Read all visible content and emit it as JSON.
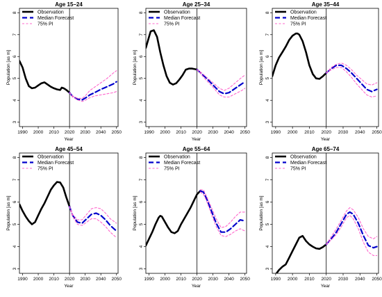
{
  "legend": {
    "observation": "Observation",
    "median": "Median Forecast",
    "pi": "75% PI"
  },
  "axes": {
    "xlabel": "Year",
    "ylabel": "Population [as m]"
  },
  "colors": {
    "observation": "#000000",
    "median": "#0000cc",
    "pi": "#ff66cc",
    "vline": "#000000"
  },
  "chart_data": [
    {
      "type": "line",
      "title": "Age 15–24",
      "xlim": [
        1988,
        2051
      ],
      "ylim": [
        2.8,
        8.2
      ],
      "xticks": [
        1990,
        2000,
        2010,
        2020,
        2030,
        2040,
        2050
      ],
      "yticks": [
        3,
        4,
        5,
        6,
        7,
        8
      ],
      "forecast_start": 2020,
      "legend_position": "top-left",
      "series": [
        {
          "name": "Observation",
          "style": "solid",
          "x": [
            1988,
            1990,
            1992,
            1994,
            1996,
            1998,
            2000,
            2002,
            2004,
            2006,
            2008,
            2010,
            2012,
            2014,
            2015,
            2016,
            2017,
            2018,
            2020
          ],
          "y": [
            5.8,
            5.5,
            5.0,
            4.65,
            4.55,
            4.58,
            4.68,
            4.78,
            4.82,
            4.72,
            4.62,
            4.55,
            4.5,
            4.47,
            4.58,
            4.56,
            4.52,
            4.47,
            4.35
          ]
        },
        {
          "name": "Median Forecast",
          "style": "dashed",
          "x": [
            2020,
            2022,
            2025,
            2028,
            2030,
            2033,
            2036,
            2040,
            2044,
            2048,
            2050
          ],
          "y": [
            4.35,
            4.18,
            4.05,
            4.02,
            4.1,
            4.25,
            4.35,
            4.5,
            4.62,
            4.75,
            4.85
          ]
        },
        {
          "name": "75% PI upper",
          "style": "dotted",
          "x": [
            2020,
            2022,
            2025,
            2028,
            2030,
            2033,
            2036,
            2040,
            2044,
            2048,
            2050
          ],
          "y": [
            4.35,
            4.2,
            4.1,
            4.08,
            4.2,
            4.45,
            4.6,
            4.8,
            5.0,
            5.25,
            5.35
          ]
        },
        {
          "name": "75% PI lower",
          "style": "dotted",
          "x": [
            2020,
            2022,
            2025,
            2028,
            2030,
            2033,
            2036,
            2040,
            2044,
            2048,
            2050
          ],
          "y": [
            4.35,
            4.15,
            4.02,
            3.95,
            4.0,
            4.12,
            4.2,
            4.25,
            4.3,
            4.35,
            4.4
          ]
        }
      ]
    },
    {
      "type": "line",
      "title": "Age 25–34",
      "xlim": [
        1988,
        2051
      ],
      "ylim": [
        2.8,
        8.2
      ],
      "xticks": [
        1990,
        2000,
        2010,
        2020,
        2030,
        2040,
        2050
      ],
      "yticks": [
        3,
        4,
        5,
        6,
        7,
        8
      ],
      "forecast_start": 2020,
      "legend_position": "top-left",
      "series": [
        {
          "name": "Observation",
          "style": "solid",
          "x": [
            1988,
            1990,
            1991,
            1993,
            1995,
            1997,
            1999,
            2001,
            2003,
            2005,
            2007,
            2009,
            2011,
            2013,
            2015,
            2017,
            2019,
            2020
          ],
          "y": [
            6.4,
            6.9,
            7.15,
            7.2,
            6.9,
            6.2,
            5.6,
            5.1,
            4.8,
            4.72,
            4.78,
            4.95,
            5.15,
            5.4,
            5.45,
            5.45,
            5.42,
            5.4
          ]
        },
        {
          "name": "Median Forecast",
          "style": "dashed",
          "x": [
            2020,
            2023,
            2026,
            2030,
            2034,
            2037,
            2040,
            2044,
            2048,
            2050
          ],
          "y": [
            5.4,
            5.2,
            5.0,
            4.7,
            4.4,
            4.3,
            4.35,
            4.55,
            4.75,
            4.85
          ]
        },
        {
          "name": "75% PI upper",
          "style": "dotted",
          "x": [
            2020,
            2023,
            2026,
            2030,
            2034,
            2037,
            2040,
            2044,
            2048,
            2050
          ],
          "y": [
            5.4,
            5.25,
            5.05,
            4.8,
            4.55,
            4.45,
            4.55,
            4.8,
            5.05,
            5.15
          ]
        },
        {
          "name": "75% PI lower",
          "style": "dotted",
          "x": [
            2020,
            2023,
            2026,
            2030,
            2034,
            2037,
            2040,
            2044,
            2048,
            2050
          ],
          "y": [
            5.4,
            5.15,
            4.9,
            4.6,
            4.25,
            4.15,
            4.15,
            4.3,
            4.45,
            4.55
          ]
        }
      ]
    },
    {
      "type": "line",
      "title": "Age 35–44",
      "xlim": [
        1988,
        2051
      ],
      "ylim": [
        2.8,
        8.2
      ],
      "xticks": [
        1990,
        2000,
        2010,
        2020,
        2030,
        2040,
        2050
      ],
      "yticks": [
        3,
        4,
        5,
        6,
        7,
        8
      ],
      "forecast_start": 2020,
      "legend_position": "top-left",
      "series": [
        {
          "name": "Observation",
          "style": "solid",
          "x": [
            1988,
            1990,
            1992,
            1994,
            1996,
            1998,
            2000,
            2002,
            2003,
            2004,
            2006,
            2008,
            2010,
            2012,
            2014,
            2016,
            2018,
            2020
          ],
          "y": [
            5.1,
            5.6,
            5.95,
            6.2,
            6.45,
            6.75,
            6.95,
            7.05,
            7.05,
            7.0,
            6.7,
            6.2,
            5.6,
            5.2,
            5.0,
            4.98,
            5.1,
            5.25
          ]
        },
        {
          "name": "Median Forecast",
          "style": "dashed",
          "x": [
            2020,
            2023,
            2026,
            2029,
            2032,
            2035,
            2038,
            2041,
            2044,
            2047,
            2050
          ],
          "y": [
            5.25,
            5.45,
            5.6,
            5.6,
            5.45,
            5.25,
            5.0,
            4.75,
            4.5,
            4.4,
            4.5
          ]
        },
        {
          "name": "75% PI upper",
          "style": "dotted",
          "x": [
            2020,
            2023,
            2026,
            2029,
            2032,
            2035,
            2038,
            2041,
            2044,
            2047,
            2050
          ],
          "y": [
            5.25,
            5.5,
            5.65,
            5.7,
            5.6,
            5.4,
            5.15,
            4.95,
            4.75,
            4.7,
            4.8
          ]
        },
        {
          "name": "75% PI lower",
          "style": "dotted",
          "x": [
            2020,
            2023,
            2026,
            2029,
            2032,
            2035,
            2038,
            2041,
            2044,
            2047,
            2050
          ],
          "y": [
            5.25,
            5.4,
            5.5,
            5.5,
            5.3,
            5.05,
            4.75,
            4.5,
            4.25,
            4.15,
            4.2
          ]
        }
      ]
    },
    {
      "type": "line",
      "title": "Age 45–54",
      "xlim": [
        1988,
        2051
      ],
      "ylim": [
        2.8,
        8.2
      ],
      "xticks": [
        1990,
        2000,
        2010,
        2020,
        2030,
        2040,
        2050
      ],
      "yticks": [
        3,
        4,
        5,
        6,
        7,
        8
      ],
      "forecast_start": 2020,
      "legend_position": "top-left",
      "series": [
        {
          "name": "Observation",
          "style": "solid",
          "x": [
            1988,
            1990,
            1992,
            1994,
            1996,
            1998,
            2000,
            2002,
            2004,
            2006,
            2008,
            2010,
            2012,
            2014,
            2016,
            2018,
            2020
          ],
          "y": [
            5.9,
            5.6,
            5.35,
            5.15,
            5.0,
            5.1,
            5.4,
            5.7,
            5.95,
            6.25,
            6.55,
            6.75,
            6.9,
            6.88,
            6.65,
            6.2,
            5.8
          ]
        },
        {
          "name": "Median Forecast",
          "style": "dashed",
          "x": [
            2020,
            2022,
            2025,
            2028,
            2031,
            2034,
            2037,
            2040,
            2043,
            2046,
            2050
          ],
          "y": [
            5.8,
            5.4,
            5.1,
            5.05,
            5.25,
            5.45,
            5.5,
            5.4,
            5.2,
            4.95,
            4.7
          ]
        },
        {
          "name": "75% PI upper",
          "style": "dotted",
          "x": [
            2020,
            2022,
            2025,
            2028,
            2031,
            2034,
            2037,
            2040,
            2043,
            2046,
            2050
          ],
          "y": [
            5.8,
            5.45,
            5.2,
            5.2,
            5.45,
            5.7,
            5.75,
            5.7,
            5.5,
            5.25,
            5.05
          ]
        },
        {
          "name": "75% PI lower",
          "style": "dotted",
          "x": [
            2020,
            2022,
            2025,
            2028,
            2031,
            2034,
            2037,
            2040,
            2043,
            2046,
            2050
          ],
          "y": [
            5.8,
            5.35,
            5.0,
            4.95,
            5.1,
            5.25,
            5.25,
            5.1,
            4.9,
            4.65,
            4.4
          ]
        }
      ]
    },
    {
      "type": "line",
      "title": "Age 55–64",
      "xlim": [
        1988,
        2051
      ],
      "ylim": [
        2.8,
        8.2
      ],
      "xticks": [
        1990,
        2000,
        2010,
        2020,
        2030,
        2040,
        2050
      ],
      "yticks": [
        3,
        4,
        5,
        6,
        7,
        8
      ],
      "forecast_start": 2020,
      "legend_position": "top-left",
      "series": [
        {
          "name": "Observation",
          "style": "solid",
          "x": [
            1988,
            1990,
            1992,
            1994,
            1996,
            1997,
            1998,
            2000,
            2002,
            2004,
            2006,
            2008,
            2010,
            2012,
            2014,
            2016,
            2018,
            2020,
            2022
          ],
          "y": [
            4.05,
            4.35,
            4.65,
            5.0,
            5.3,
            5.38,
            5.35,
            5.1,
            4.85,
            4.65,
            4.6,
            4.7,
            5.0,
            5.25,
            5.5,
            5.75,
            6.05,
            6.35,
            6.5
          ]
        },
        {
          "name": "Median Forecast",
          "style": "dashed",
          "x": [
            2022,
            2024,
            2026,
            2029,
            2032,
            2035,
            2038,
            2041,
            2044,
            2047,
            2050
          ],
          "y": [
            6.5,
            6.45,
            6.15,
            5.6,
            5.05,
            4.65,
            4.65,
            4.8,
            5.0,
            5.2,
            5.15
          ]
        },
        {
          "name": "75% PI upper",
          "style": "dotted",
          "x": [
            2022,
            2024,
            2026,
            2029,
            2032,
            2035,
            2038,
            2041,
            2044,
            2047,
            2050
          ],
          "y": [
            6.55,
            6.55,
            6.25,
            5.75,
            5.25,
            4.85,
            4.9,
            5.1,
            5.35,
            5.55,
            5.55
          ]
        },
        {
          "name": "75% PI lower",
          "style": "dotted",
          "x": [
            2022,
            2024,
            2026,
            2029,
            2032,
            2035,
            2038,
            2041,
            2044,
            2047,
            2050
          ],
          "y": [
            6.45,
            6.35,
            6.05,
            5.45,
            4.9,
            4.5,
            4.45,
            4.55,
            4.7,
            4.8,
            4.7
          ]
        }
      ]
    },
    {
      "type": "line",
      "title": "Age 65–74",
      "xlim": [
        1988,
        2051
      ],
      "ylim": [
        2.8,
        8.2
      ],
      "xticks": [
        1990,
        2000,
        2010,
        2020,
        2030,
        2040,
        2050
      ],
      "yticks": [
        3,
        4,
        5,
        6,
        7,
        8
      ],
      "forecast_start": 2020,
      "legend_position": "top-left",
      "series": [
        {
          "name": "Observation",
          "style": "solid",
          "x": [
            1990,
            1992,
            1994,
            1996,
            1998,
            2000,
            2002,
            2004,
            2006,
            2008,
            2010,
            2012,
            2014,
            2016,
            2018,
            2020
          ],
          "y": [
            2.75,
            2.95,
            3.1,
            3.2,
            3.5,
            3.8,
            4.1,
            4.4,
            4.48,
            4.25,
            4.1,
            4.0,
            3.92,
            3.9,
            3.98,
            4.1
          ]
        },
        {
          "name": "Median Forecast",
          "style": "dashed",
          "x": [
            2020,
            2023,
            2026,
            2029,
            2032,
            2034,
            2036,
            2039,
            2042,
            2045,
            2048,
            2050
          ],
          "y": [
            4.1,
            4.35,
            4.65,
            5.05,
            5.45,
            5.55,
            5.45,
            5.05,
            4.5,
            4.05,
            3.95,
            4.0
          ]
        },
        {
          "name": "75% PI upper",
          "style": "dotted",
          "x": [
            2020,
            2023,
            2026,
            2029,
            2032,
            2034,
            2036,
            2039,
            2042,
            2045,
            2048,
            2050
          ],
          "y": [
            4.1,
            4.45,
            4.8,
            5.2,
            5.6,
            5.75,
            5.65,
            5.3,
            4.8,
            4.45,
            4.35,
            4.45
          ]
        },
        {
          "name": "75% PI lower",
          "style": "dotted",
          "x": [
            2020,
            2023,
            2026,
            2029,
            2032,
            2034,
            2036,
            2039,
            2042,
            2045,
            2048,
            2050
          ],
          "y": [
            4.1,
            4.3,
            4.55,
            4.9,
            5.3,
            5.4,
            5.25,
            4.8,
            4.2,
            3.75,
            3.6,
            3.6
          ]
        }
      ]
    }
  ]
}
